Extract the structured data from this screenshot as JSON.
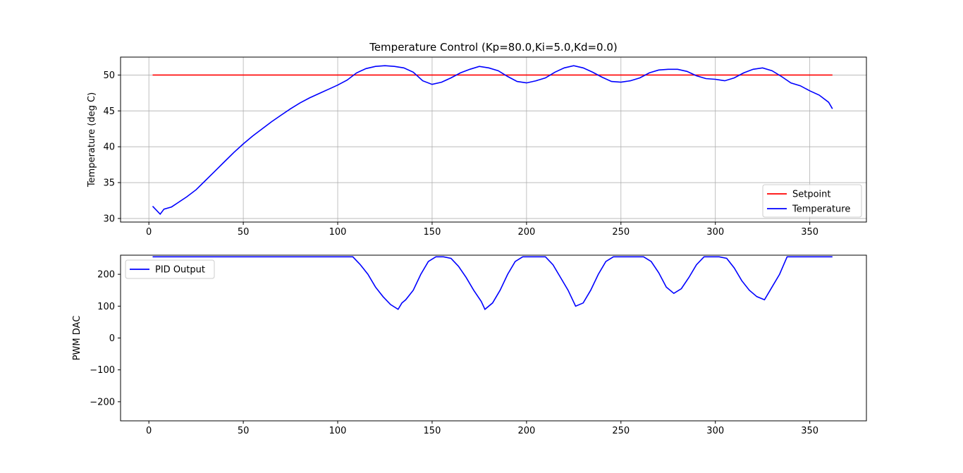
{
  "chart_data": [
    {
      "type": "line",
      "title": "Temperature Control (Kp=80.0,Ki=5.0,Kd=0.0)",
      "xlabel": "",
      "ylabel": "Temperature (deg C)",
      "xlim": [
        -15,
        380
      ],
      "ylim": [
        29.5,
        52.5
      ],
      "xticks": [
        0,
        50,
        100,
        150,
        200,
        250,
        300,
        350
      ],
      "yticks": [
        30,
        35,
        40,
        45,
        50
      ],
      "grid": true,
      "legend": "lower-right",
      "series": [
        {
          "name": "Setpoint",
          "color": "#ff0000",
          "x": [
            2,
            362
          ],
          "y": [
            50,
            50
          ]
        },
        {
          "name": "Temperature",
          "color": "#0000ff",
          "x": [
            2,
            6,
            8,
            12,
            16,
            20,
            25,
            30,
            35,
            40,
            45,
            50,
            55,
            60,
            65,
            70,
            75,
            80,
            85,
            90,
            95,
            100,
            105,
            110,
            115,
            120,
            125,
            130,
            135,
            140,
            145,
            150,
            155,
            160,
            165,
            170,
            175,
            180,
            185,
            190,
            195,
            200,
            205,
            210,
            215,
            220,
            225,
            230,
            235,
            240,
            245,
            250,
            255,
            260,
            265,
            270,
            275,
            280,
            285,
            290,
            295,
            300,
            305,
            310,
            315,
            320,
            325,
            330,
            335,
            340,
            345,
            350,
            355,
            360,
            362
          ],
          "y": [
            31.7,
            30.6,
            31.3,
            31.6,
            32.3,
            33.0,
            34.0,
            35.3,
            36.6,
            37.9,
            39.2,
            40.4,
            41.5,
            42.5,
            43.5,
            44.4,
            45.3,
            46.1,
            46.8,
            47.4,
            48.0,
            48.6,
            49.3,
            50.3,
            50.9,
            51.2,
            51.3,
            51.2,
            51.0,
            50.4,
            49.2,
            48.7,
            49.0,
            49.6,
            50.3,
            50.8,
            51.2,
            51.0,
            50.6,
            49.8,
            49.1,
            48.9,
            49.2,
            49.6,
            50.4,
            51.0,
            51.3,
            51.0,
            50.4,
            49.7,
            49.1,
            49.0,
            49.2,
            49.6,
            50.3,
            50.7,
            50.8,
            50.8,
            50.5,
            49.9,
            49.5,
            49.4,
            49.2,
            49.6,
            50.3,
            50.8,
            51.0,
            50.6,
            49.8,
            48.9,
            48.5,
            47.8,
            47.2,
            46.2,
            45.3
          ]
        }
      ]
    },
    {
      "type": "line",
      "title": "",
      "xlabel": "",
      "ylabel": "PWM DAC",
      "xlim": [
        -15,
        380
      ],
      "ylim": [
        -260,
        260
      ],
      "xticks": [
        0,
        50,
        100,
        150,
        200,
        250,
        300,
        350
      ],
      "yticks": [
        -200,
        -100,
        0,
        100,
        200
      ],
      "grid": false,
      "legend": "upper-left",
      "series": [
        {
          "name": "PID Output",
          "color": "#0000ff",
          "x": [
            2,
            108,
            112,
            116,
            120,
            124,
            128,
            132,
            134,
            136,
            140,
            144,
            148,
            152,
            156,
            160,
            164,
            168,
            172,
            176,
            178,
            182,
            186,
            190,
            194,
            198,
            202,
            206,
            210,
            214,
            218,
            222,
            226,
            230,
            234,
            238,
            242,
            246,
            250,
            254,
            258,
            262,
            266,
            270,
            274,
            278,
            282,
            286,
            290,
            294,
            298,
            302,
            306,
            310,
            314,
            318,
            322,
            326,
            330,
            334,
            338,
            362
          ],
          "y": [
            255,
            255,
            230,
            200,
            160,
            130,
            105,
            90,
            110,
            120,
            150,
            200,
            240,
            255,
            255,
            250,
            225,
            190,
            150,
            115,
            90,
            110,
            150,
            200,
            240,
            255,
            255,
            255,
            255,
            230,
            190,
            150,
            100,
            110,
            150,
            200,
            240,
            255,
            255,
            255,
            255,
            255,
            240,
            205,
            160,
            140,
            155,
            190,
            230,
            255,
            255,
            255,
            250,
            220,
            180,
            150,
            130,
            120,
            160,
            200,
            255,
            255
          ]
        }
      ]
    }
  ]
}
